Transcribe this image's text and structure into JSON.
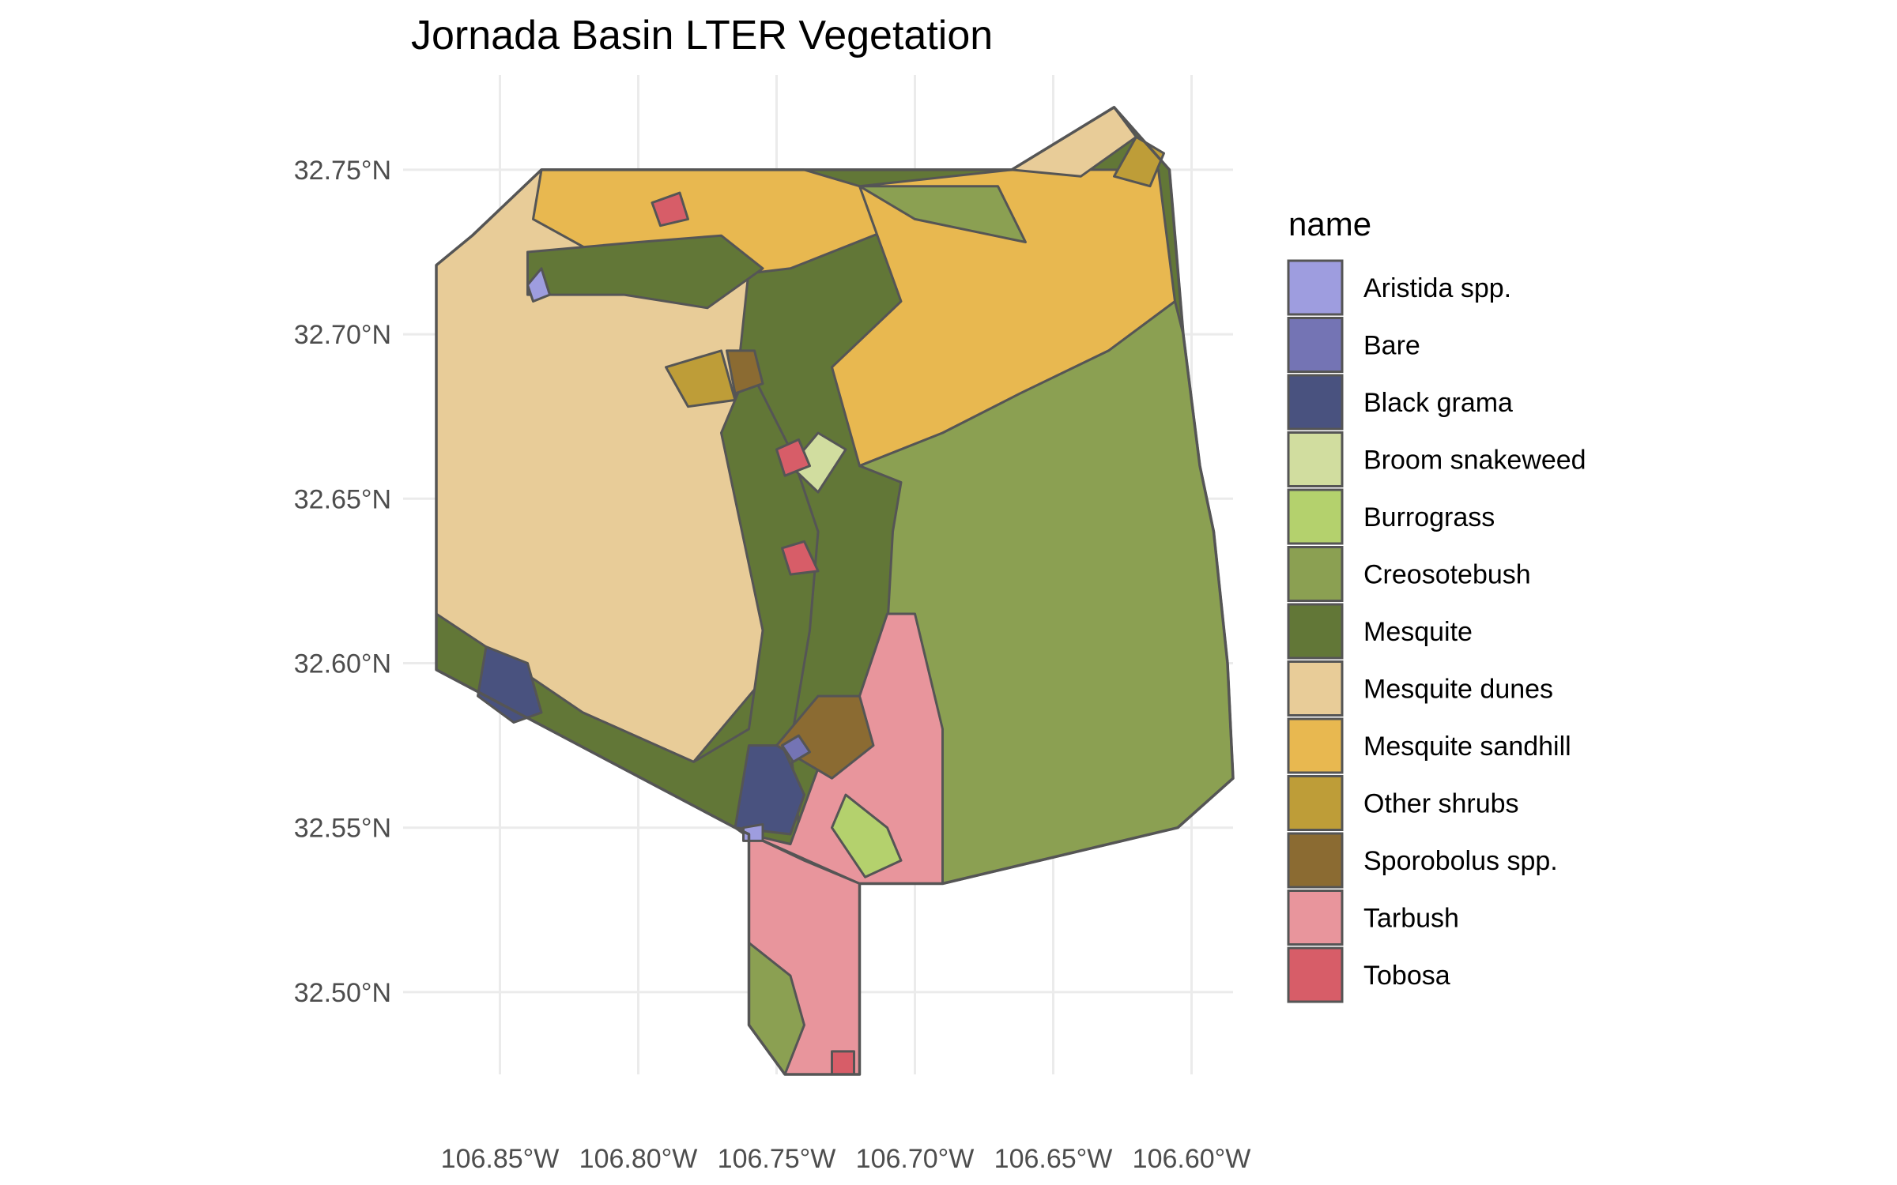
{
  "title": "Jornada Basin LTER Vegetation",
  "colors": {
    "Aristida spp.": "#9e9ddf",
    "Bare": "#7474b4",
    "Black grama": "#49527f",
    "Broom snakeweed": "#d1dd9f",
    "Burrograss": "#b4d16d",
    "Creosotebush": "#8ba052",
    "Mesquite": "#627737",
    "Mesquite dunes": "#e8cc98",
    "Mesquite sandhill": "#e8b850",
    "Other shrubs": "#be9d38",
    "Sporobolus spp.": "#8b6b32",
    "Tarbush": "#e8959c",
    "Tobosa": "#d75d68"
  },
  "chart_data": {
    "type": "map",
    "title": "Jornada Basin LTER Vegetation",
    "xlabel": "",
    "ylabel": "",
    "xlim": [
      -106.875,
      -106.585
    ],
    "ylim": [
      32.475,
      32.78
    ],
    "grid": true,
    "x_ticks": [
      -106.85,
      -106.8,
      -106.75,
      -106.7,
      -106.65,
      -106.6
    ],
    "x_tick_labels": [
      "106.85°W",
      "106.80°W",
      "106.75°W",
      "106.70°W",
      "106.65°W",
      "106.60°W"
    ],
    "y_ticks": [
      32.5,
      32.55,
      32.6,
      32.65,
      32.7,
      32.75
    ],
    "y_tick_labels": [
      "32.50°N",
      "32.55°N",
      "32.60°N",
      "32.65°N",
      "32.70°N",
      "32.75°N"
    ],
    "legend": {
      "title": "name",
      "position": "right",
      "entries": [
        "Aristida spp.",
        "Bare",
        "Black grama",
        "Broom snakeweed",
        "Burrograss",
        "Creosotebush",
        "Mesquite",
        "Mesquite dunes",
        "Mesquite sandhill",
        "Other shrubs",
        "Sporobolus spp.",
        "Tarbush",
        "Tobosa"
      ]
    },
    "boundary": [
      [
        -106.765,
        32.55
      ],
      [
        -106.873,
        32.598
      ],
      [
        -106.873,
        32.721
      ],
      [
        -106.86,
        32.73
      ],
      [
        -106.835,
        32.75
      ],
      [
        -106.665,
        32.75
      ],
      [
        -106.628,
        32.769
      ],
      [
        -106.608,
        32.75
      ],
      [
        -106.603,
        32.7
      ],
      [
        -106.597,
        32.66
      ],
      [
        -106.592,
        32.64
      ],
      [
        -106.587,
        32.6
      ],
      [
        -106.585,
        32.565
      ],
      [
        -106.605,
        32.55
      ],
      [
        -106.69,
        32.533
      ],
      [
        -106.72,
        32.533
      ],
      [
        -106.72,
        32.475
      ],
      [
        -106.747,
        32.475
      ],
      [
        -106.76,
        32.49
      ],
      [
        -106.76,
        32.548
      ]
    ],
    "regions": [
      {
        "name": "Mesquite dunes",
        "coords": [
          [
            -106.873,
            32.598
          ],
          [
            -106.873,
            32.721
          ],
          [
            -106.86,
            32.73
          ],
          [
            -106.835,
            32.75
          ],
          [
            -106.78,
            32.75
          ],
          [
            -106.76,
            32.72
          ],
          [
            -106.765,
            32.68
          ],
          [
            -106.748,
            32.655
          ],
          [
            -106.735,
            32.64
          ],
          [
            -106.75,
            32.6
          ],
          [
            -106.78,
            32.57
          ],
          [
            -106.82,
            32.585
          ],
          [
            -106.85,
            32.592
          ]
        ]
      },
      {
        "name": "Mesquite sandhill",
        "coords": [
          [
            -106.835,
            32.75
          ],
          [
            -106.74,
            32.75
          ],
          [
            -106.72,
            32.745
          ],
          [
            -106.7,
            32.735
          ],
          [
            -106.745,
            32.72
          ],
          [
            -106.775,
            32.717
          ],
          [
            -106.81,
            32.722
          ],
          [
            -106.838,
            32.735
          ]
        ]
      },
      {
        "name": "Mesquite sandhill",
        "coords": [
          [
            -106.72,
            32.745
          ],
          [
            -106.665,
            32.75
          ],
          [
            -106.612,
            32.75
          ],
          [
            -106.606,
            32.71
          ],
          [
            -106.63,
            32.695
          ],
          [
            -106.662,
            32.682
          ],
          [
            -106.69,
            32.67
          ],
          [
            -106.72,
            32.66
          ],
          [
            -106.73,
            32.69
          ],
          [
            -106.705,
            32.71
          ]
        ]
      },
      {
        "name": "Creosotebush",
        "coords": [
          [
            -106.72,
            32.66
          ],
          [
            -106.69,
            32.67
          ],
          [
            -106.662,
            32.682
          ],
          [
            -106.63,
            32.695
          ],
          [
            -106.606,
            32.71
          ],
          [
            -106.603,
            32.7
          ],
          [
            -106.597,
            32.66
          ],
          [
            -106.592,
            32.64
          ],
          [
            -106.587,
            32.6
          ],
          [
            -106.585,
            32.565
          ],
          [
            -106.605,
            32.55
          ],
          [
            -106.69,
            32.533
          ],
          [
            -106.7,
            32.57
          ],
          [
            -106.71,
            32.61
          ],
          [
            -106.708,
            32.64
          ],
          [
            -106.705,
            32.655
          ]
        ]
      },
      {
        "name": "Creosotebush",
        "coords": [
          [
            -106.72,
            32.745
          ],
          [
            -106.7,
            32.735
          ],
          [
            -106.66,
            32.728
          ],
          [
            -106.67,
            32.745
          ]
        ]
      },
      {
        "name": "Mesquite dunes",
        "coords": [
          [
            -106.665,
            32.75
          ],
          [
            -106.628,
            32.769
          ],
          [
            -106.62,
            32.76
          ],
          [
            -106.64,
            32.748
          ]
        ]
      },
      {
        "name": "Mesquite",
        "coords": [
          [
            -106.765,
            32.55
          ],
          [
            -106.873,
            32.598
          ],
          [
            -106.873,
            32.615
          ],
          [
            -106.855,
            32.605
          ],
          [
            -106.82,
            32.585
          ],
          [
            -106.78,
            32.57
          ],
          [
            -106.76,
            32.58
          ],
          [
            -106.755,
            32.61
          ],
          [
            -106.765,
            32.65
          ],
          [
            -106.77,
            32.67
          ],
          [
            -106.76,
            32.69
          ],
          [
            -106.745,
            32.665
          ],
          [
            -106.735,
            32.64
          ],
          [
            -106.738,
            32.61
          ],
          [
            -106.745,
            32.575
          ],
          [
            -106.74,
            32.535
          ]
        ]
      },
      {
        "name": "Mesquite",
        "coords": [
          [
            -106.84,
            32.725
          ],
          [
            -106.8,
            32.728
          ],
          [
            -106.77,
            32.73
          ],
          [
            -106.755,
            32.72
          ],
          [
            -106.775,
            32.708
          ],
          [
            -106.805,
            32.712
          ],
          [
            -106.84,
            32.712
          ]
        ]
      },
      {
        "name": "Tarbush",
        "coords": [
          [
            -106.76,
            32.548
          ],
          [
            -106.745,
            32.545
          ],
          [
            -106.735,
            32.568
          ],
          [
            -106.72,
            32.59
          ],
          [
            -106.71,
            32.615
          ],
          [
            -106.7,
            32.615
          ],
          [
            -106.69,
            32.58
          ],
          [
            -106.69,
            32.533
          ],
          [
            -106.72,
            32.533
          ]
        ]
      },
      {
        "name": "Tarbush",
        "coords": [
          [
            -106.76,
            32.548
          ],
          [
            -106.76,
            32.49
          ],
          [
            -106.747,
            32.475
          ],
          [
            -106.72,
            32.475
          ],
          [
            -106.72,
            32.533
          ],
          [
            -106.74,
            32.54
          ]
        ]
      },
      {
        "name": "Creosotebush",
        "coords": [
          [
            -106.76,
            32.515
          ],
          [
            -106.76,
            32.49
          ],
          [
            -106.747,
            32.475
          ],
          [
            -106.74,
            32.49
          ],
          [
            -106.745,
            32.505
          ]
        ]
      },
      {
        "name": "Black grama",
        "coords": [
          [
            -106.765,
            32.55
          ],
          [
            -106.745,
            32.548
          ],
          [
            -106.74,
            32.56
          ],
          [
            -106.748,
            32.575
          ],
          [
            -106.76,
            32.575
          ]
        ]
      },
      {
        "name": "Black grama",
        "coords": [
          [
            -106.855,
            32.605
          ],
          [
            -106.84,
            32.6
          ],
          [
            -106.835,
            32.585
          ],
          [
            -106.845,
            32.582
          ],
          [
            -106.858,
            32.59
          ]
        ]
      },
      {
        "name": "Sporobolus spp.",
        "coords": [
          [
            -106.75,
            32.575
          ],
          [
            -106.735,
            32.59
          ],
          [
            -106.72,
            32.59
          ],
          [
            -106.715,
            32.575
          ],
          [
            -106.73,
            32.565
          ]
        ]
      },
      {
        "name": "Sporobolus spp.",
        "coords": [
          [
            -106.768,
            32.695
          ],
          [
            -106.758,
            32.695
          ],
          [
            -106.755,
            32.685
          ],
          [
            -106.765,
            32.682
          ]
        ]
      },
      {
        "name": "Other shrubs",
        "coords": [
          [
            -106.79,
            32.69
          ],
          [
            -106.77,
            32.695
          ],
          [
            -106.765,
            32.68
          ],
          [
            -106.782,
            32.678
          ]
        ]
      },
      {
        "name": "Other shrubs",
        "coords": [
          [
            -106.61,
            32.755
          ],
          [
            -106.62,
            32.76
          ],
          [
            -106.628,
            32.748
          ],
          [
            -106.615,
            32.745
          ]
        ]
      },
      {
        "name": "Broom snakeweed",
        "coords": [
          [
            -106.745,
            32.66
          ],
          [
            -106.735,
            32.67
          ],
          [
            -106.725,
            32.665
          ],
          [
            -106.735,
            32.652
          ]
        ]
      },
      {
        "name": "Burrograss",
        "coords": [
          [
            -106.725,
            32.56
          ],
          [
            -106.71,
            32.55
          ],
          [
            -106.705,
            32.54
          ],
          [
            -106.718,
            32.535
          ],
          [
            -106.73,
            32.55
          ]
        ]
      },
      {
        "name": "Tobosa",
        "coords": [
          [
            -106.795,
            32.74
          ],
          [
            -106.785,
            32.743
          ],
          [
            -106.782,
            32.735
          ],
          [
            -106.792,
            32.733
          ]
        ]
      },
      {
        "name": "Tobosa",
        "coords": [
          [
            -106.75,
            32.665
          ],
          [
            -106.742,
            32.668
          ],
          [
            -106.738,
            32.66
          ],
          [
            -106.747,
            32.657
          ]
        ]
      },
      {
        "name": "Tobosa",
        "coords": [
          [
            -106.748,
            32.635
          ],
          [
            -106.74,
            32.637
          ],
          [
            -106.735,
            32.628
          ],
          [
            -106.745,
            32.627
          ]
        ]
      },
      {
        "name": "Tobosa",
        "coords": [
          [
            -106.73,
            32.482
          ],
          [
            -106.722,
            32.482
          ],
          [
            -106.722,
            32.475
          ],
          [
            -106.73,
            32.475
          ]
        ]
      },
      {
        "name": "Aristida spp.",
        "coords": [
          [
            -106.84,
            32.715
          ],
          [
            -106.835,
            32.72
          ],
          [
            -106.832,
            32.712
          ],
          [
            -106.838,
            32.71
          ]
        ]
      },
      {
        "name": "Aristida spp.",
        "coords": [
          [
            -106.762,
            32.55
          ],
          [
            -106.755,
            32.551
          ],
          [
            -106.755,
            32.546
          ],
          [
            -106.762,
            32.546
          ]
        ]
      },
      {
        "name": "Bare",
        "coords": [
          [
            -106.748,
            32.575
          ],
          [
            -106.742,
            32.578
          ],
          [
            -106.738,
            32.573
          ],
          [
            -106.744,
            32.57
          ]
        ]
      }
    ]
  }
}
